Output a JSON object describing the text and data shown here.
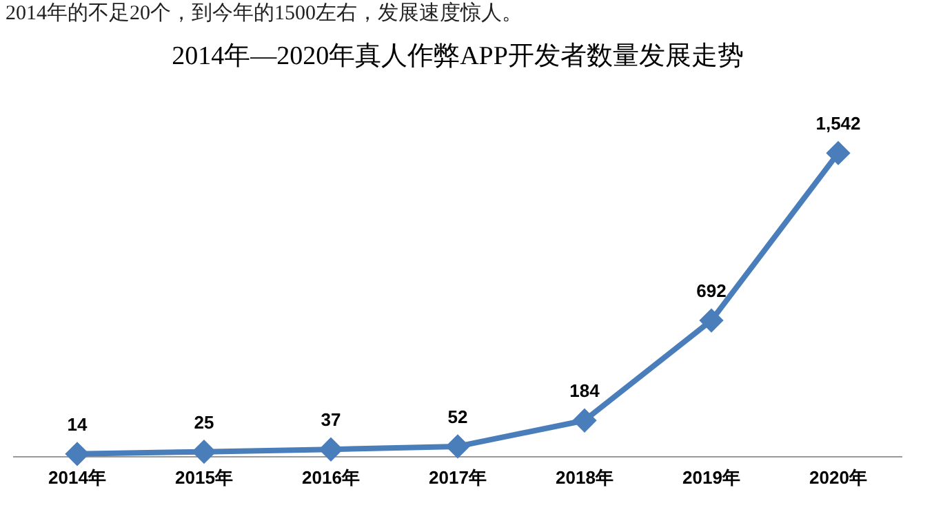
{
  "chart_data": {
    "type": "line",
    "title": "2014年—2020年真人作弊APP开发者数量发展走势",
    "annotations": [
      "2014年的不足20个，到今年的1500左右，发展速度惊人。"
    ],
    "categories": [
      "2014年",
      "2015年",
      "2016年",
      "2017年",
      "2018年",
      "2019年",
      "2020年"
    ],
    "series": [
      {
        "color": "#4a7ebb",
        "values": [
          14,
          25,
          37,
          52,
          184,
          692,
          1542
        ],
        "value_labels": [
          "14",
          "25",
          "37",
          "52",
          "184",
          "692",
          "1,542"
        ]
      }
    ],
    "marker": "diamond",
    "grid": false,
    "legend": false
  }
}
